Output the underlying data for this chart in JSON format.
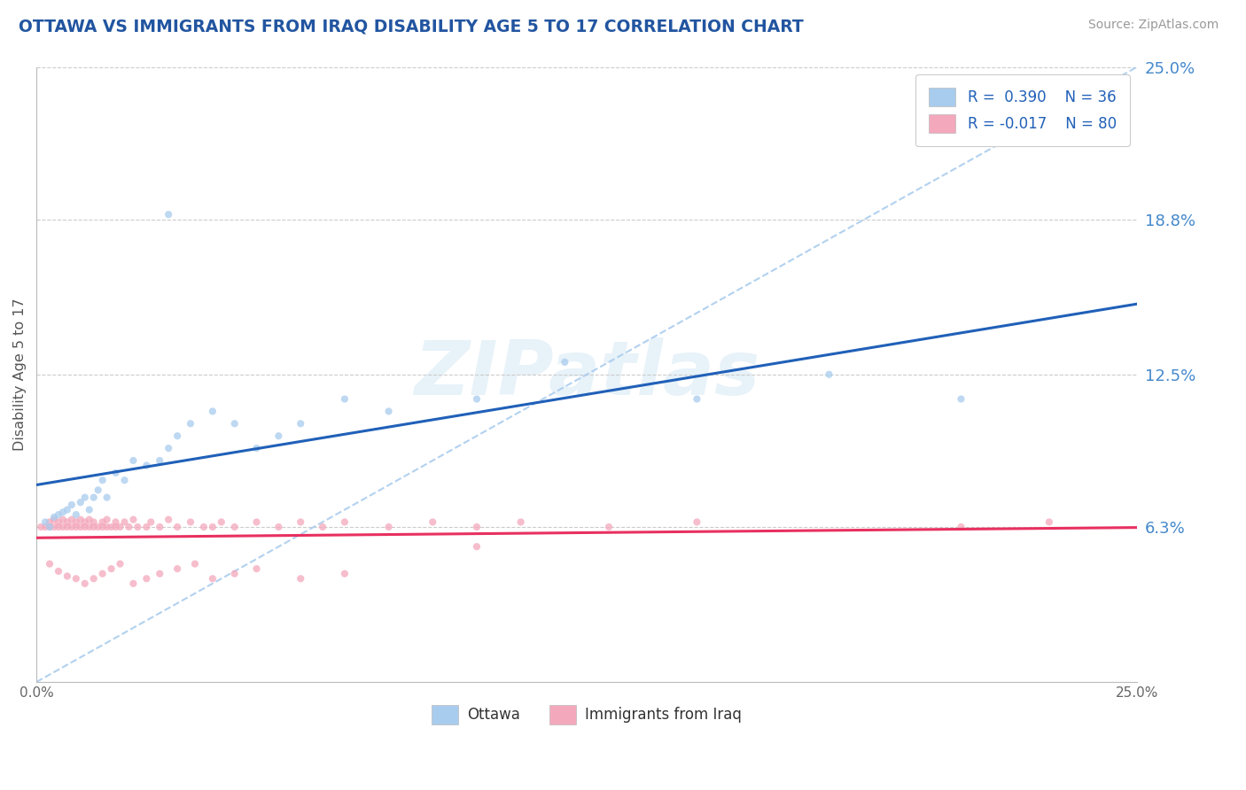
{
  "title": "OTTAWA VS IMMIGRANTS FROM IRAQ DISABILITY AGE 5 TO 17 CORRELATION CHART",
  "source": "Source: ZipAtlas.com",
  "ylabel": "Disability Age 5 to 17",
  "xlim": [
    0.0,
    0.25
  ],
  "ylim": [
    0.0,
    0.25
  ],
  "ytick_right_labels": [
    "6.3%",
    "12.5%",
    "18.8%",
    "25.0%"
  ],
  "ytick_right_values": [
    0.063,
    0.125,
    0.188,
    0.25
  ],
  "color_ottawa": "#A8CCEE",
  "color_iraq": "#F4A8BC",
  "color_line_ottawa": "#2060B8",
  "color_line_iraq": "#E83060",
  "color_diagonal": "#AACCEE",
  "color_title": "#2255A0",
  "color_right_labels": "#4488CC",
  "scatter_alpha": 0.75,
  "scatter_size": 35,
  "ottawa_x": [
    0.002,
    0.003,
    0.004,
    0.005,
    0.006,
    0.007,
    0.008,
    0.009,
    0.01,
    0.011,
    0.012,
    0.013,
    0.014,
    0.015,
    0.016,
    0.018,
    0.02,
    0.022,
    0.025,
    0.028,
    0.03,
    0.032,
    0.035,
    0.04,
    0.045,
    0.05,
    0.055,
    0.06,
    0.07,
    0.08,
    0.1,
    0.12,
    0.15,
    0.18,
    0.21,
    0.03
  ],
  "ottawa_y": [
    0.065,
    0.063,
    0.067,
    0.068,
    0.069,
    0.07,
    0.072,
    0.068,
    0.073,
    0.075,
    0.07,
    0.075,
    0.078,
    0.082,
    0.075,
    0.085,
    0.082,
    0.09,
    0.088,
    0.09,
    0.095,
    0.1,
    0.105,
    0.11,
    0.105,
    0.095,
    0.1,
    0.105,
    0.115,
    0.11,
    0.115,
    0.13,
    0.115,
    0.125,
    0.115,
    0.19
  ],
  "iraq_x": [
    0.001,
    0.002,
    0.003,
    0.003,
    0.004,
    0.004,
    0.005,
    0.005,
    0.006,
    0.006,
    0.007,
    0.007,
    0.008,
    0.008,
    0.009,
    0.009,
    0.01,
    0.01,
    0.011,
    0.011,
    0.012,
    0.012,
    0.013,
    0.013,
    0.014,
    0.015,
    0.015,
    0.016,
    0.016,
    0.017,
    0.018,
    0.018,
    0.019,
    0.02,
    0.021,
    0.022,
    0.023,
    0.025,
    0.026,
    0.028,
    0.03,
    0.032,
    0.035,
    0.038,
    0.04,
    0.042,
    0.045,
    0.05,
    0.055,
    0.06,
    0.065,
    0.07,
    0.08,
    0.09,
    0.1,
    0.11,
    0.13,
    0.15,
    0.21,
    0.23,
    0.003,
    0.005,
    0.007,
    0.009,
    0.011,
    0.013,
    0.015,
    0.017,
    0.019,
    0.022,
    0.025,
    0.028,
    0.032,
    0.036,
    0.04,
    0.045,
    0.05,
    0.06,
    0.07,
    0.1
  ],
  "iraq_y": [
    0.063,
    0.063,
    0.063,
    0.065,
    0.063,
    0.066,
    0.063,
    0.065,
    0.063,
    0.066,
    0.063,
    0.065,
    0.063,
    0.066,
    0.063,
    0.065,
    0.063,
    0.066,
    0.063,
    0.065,
    0.063,
    0.066,
    0.063,
    0.065,
    0.063,
    0.063,
    0.065,
    0.063,
    0.066,
    0.063,
    0.063,
    0.065,
    0.063,
    0.065,
    0.063,
    0.066,
    0.063,
    0.063,
    0.065,
    0.063,
    0.066,
    0.063,
    0.065,
    0.063,
    0.063,
    0.065,
    0.063,
    0.065,
    0.063,
    0.065,
    0.063,
    0.065,
    0.063,
    0.065,
    0.063,
    0.065,
    0.063,
    0.065,
    0.063,
    0.065,
    0.048,
    0.045,
    0.043,
    0.042,
    0.04,
    0.042,
    0.044,
    0.046,
    0.048,
    0.04,
    0.042,
    0.044,
    0.046,
    0.048,
    0.042,
    0.044,
    0.046,
    0.042,
    0.044,
    0.055
  ]
}
